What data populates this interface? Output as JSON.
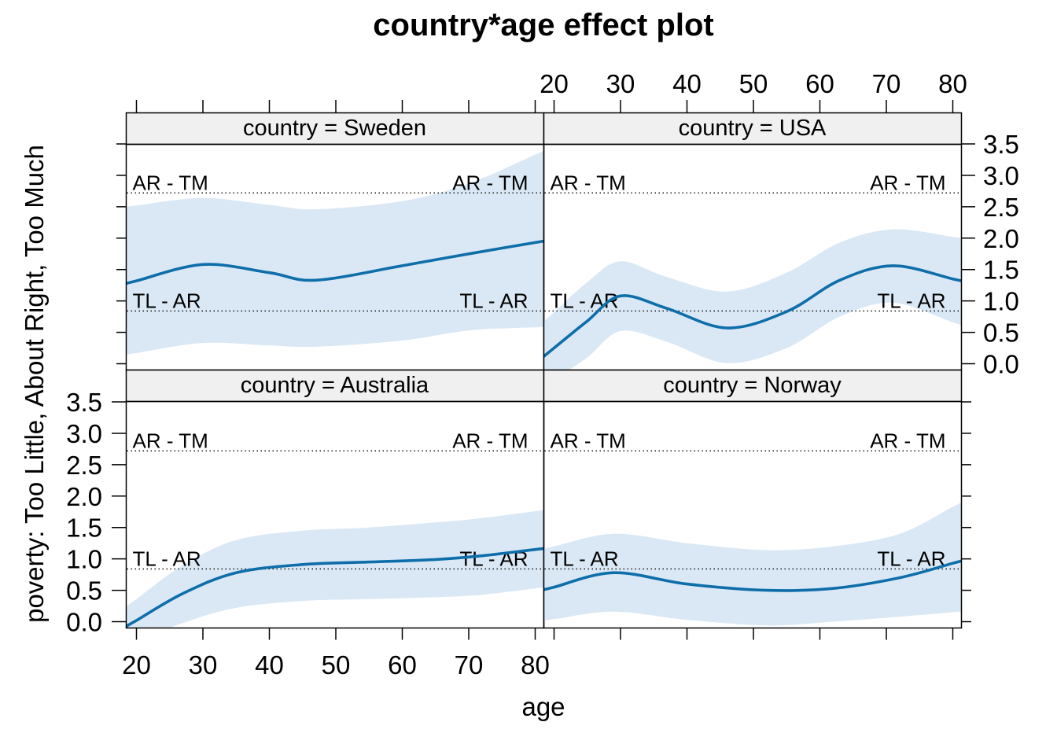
{
  "figure": {
    "title": "country*age effect plot",
    "x_axis_title": "age",
    "y_axis_title": "poverty: Too Little, About Right, Too Much"
  },
  "colors": {
    "fit_line": "#0E6EAA",
    "confidence_band": "#DAE8F5",
    "strip_background": "#F0F0F0",
    "frame": "#000000",
    "threshold_line": "#000000",
    "background": "#FFFFFF"
  },
  "chart_data": {
    "type": "line",
    "layout": "2x2-lattice",
    "title": "country*age effect plot",
    "xlabel": "age",
    "ylabel": "poverty: Too Little, About Right, Too Much",
    "x_ticks": [
      20,
      30,
      40,
      50,
      60,
      70,
      80
    ],
    "y_ticks": [
      0.0,
      0.5,
      1.0,
      1.5,
      2.0,
      2.5,
      3.0,
      3.5
    ],
    "xlim": [
      18.4,
      81.4
    ],
    "ylim": [
      -0.09,
      3.59
    ],
    "grid": false,
    "thresholds": [
      {
        "label": "AR - TM",
        "value": 2.72
      },
      {
        "label": "TL - AR",
        "value": 0.84
      }
    ],
    "panels": [
      {
        "strip_label": "country = Sweden",
        "country": "Sweden",
        "row": 0,
        "col": 0,
        "x": [
          20,
          30,
          40,
          47,
          60,
          70,
          80
        ],
        "fit": [
          1.32,
          1.58,
          1.45,
          1.33,
          1.56,
          1.75,
          1.93
        ],
        "upper": [
          2.52,
          2.64,
          2.53,
          2.46,
          2.59,
          2.87,
          3.33
        ],
        "lower": [
          0.17,
          0.33,
          0.29,
          0.27,
          0.37,
          0.53,
          0.58
        ]
      },
      {
        "strip_label": "country = USA",
        "country": "USA",
        "row": 0,
        "col": 1,
        "x": [
          20,
          25,
          30,
          37,
          46,
          55,
          63,
          71,
          80
        ],
        "fit": [
          0.25,
          0.68,
          1.08,
          0.88,
          0.57,
          0.83,
          1.33,
          1.56,
          1.35
        ],
        "upper": [
          0.82,
          1.3,
          1.63,
          1.38,
          1.15,
          1.45,
          1.93,
          2.14,
          2.02
        ],
        "lower": [
          -0.25,
          0.1,
          0.52,
          0.35,
          0.01,
          0.25,
          0.75,
          0.97,
          0.66
        ]
      },
      {
        "strip_label": "country = Australia",
        "country": "Australia",
        "row": 1,
        "col": 0,
        "x": [
          20,
          27,
          35,
          45,
          55,
          65,
          72,
          80
        ],
        "fit": [
          0.02,
          0.45,
          0.78,
          0.91,
          0.95,
          0.99,
          1.05,
          1.15
        ],
        "upper": [
          0.36,
          0.9,
          1.3,
          1.45,
          1.5,
          1.58,
          1.65,
          1.76
        ],
        "lower": [
          -0.33,
          -0.02,
          0.22,
          0.33,
          0.36,
          0.39,
          0.43,
          0.53
        ]
      },
      {
        "strip_label": "country = Norway",
        "country": "Norway",
        "row": 1,
        "col": 1,
        "x": [
          20,
          29,
          40,
          52,
          62,
          72,
          80
        ],
        "fit": [
          0.55,
          0.78,
          0.6,
          0.5,
          0.53,
          0.7,
          0.93
        ],
        "upper": [
          1.2,
          1.4,
          1.25,
          1.14,
          1.2,
          1.4,
          1.83
        ],
        "lower": [
          0.04,
          0.16,
          0.03,
          -0.06,
          0.0,
          0.08,
          0.15
        ]
      }
    ]
  }
}
